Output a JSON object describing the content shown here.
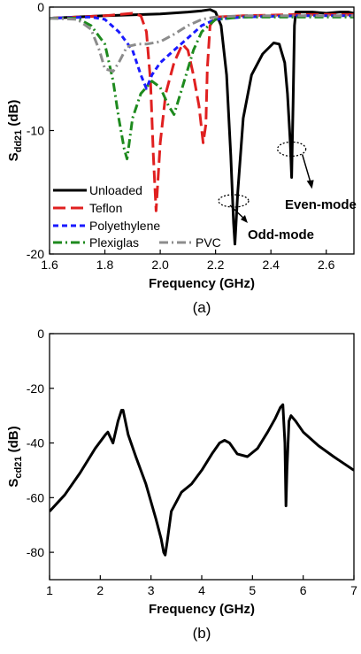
{
  "chart_data": [
    {
      "type": "line",
      "panel": "(a)",
      "xlabel": "Frequency (GHz)",
      "ylabel_main": "S",
      "ylabel_sub": "dd21",
      "ylabel_unit": " (dB)",
      "xlim": [
        1.6,
        2.7
      ],
      "ylim": [
        -20,
        0
      ],
      "xticks": [
        1.6,
        1.8,
        2.0,
        2.2,
        2.4,
        2.6
      ],
      "xtick_labels": [
        "1.6",
        "1.8",
        "2.0",
        "2.2",
        "2.4",
        "2.6"
      ],
      "yticks": [
        0,
        -10,
        -20
      ],
      "ytick_labels": [
        "0",
        "-10",
        "-20"
      ],
      "legend_position": "bottom-left",
      "series": [
        {
          "name": "Unloaded",
          "color": "#000000",
          "dash": "solid",
          "x": [
            1.6,
            1.8,
            2.0,
            2.1,
            2.15,
            2.18,
            2.2,
            2.22,
            2.24,
            2.255,
            2.265,
            2.27,
            2.28,
            2.3,
            2.33,
            2.37,
            2.41,
            2.43,
            2.45,
            2.46,
            2.47,
            2.475,
            2.48,
            2.485,
            2.49,
            2.5,
            2.55,
            2.6,
            2.65,
            2.68,
            2.7
          ],
          "y": [
            -0.9,
            -0.7,
            -0.55,
            -0.4,
            -0.3,
            -0.2,
            -0.4,
            -1.5,
            -5.5,
            -12,
            -17.5,
            -19.2,
            -15,
            -9,
            -5.5,
            -3.8,
            -2.9,
            -3.0,
            -4.5,
            -7,
            -11,
            -13.8,
            -8,
            -1.5,
            -0.4,
            -0.4,
            -0.4,
            -0.5,
            -0.4,
            -0.4,
            -0.5
          ]
        },
        {
          "name": "Teflon",
          "color": "#e02020",
          "dash": "long-dash",
          "x": [
            1.6,
            1.7,
            1.8,
            1.85,
            1.9,
            1.93,
            1.95,
            1.965,
            1.975,
            1.985,
            2.0,
            2.02,
            2.05,
            2.08,
            2.1,
            2.12,
            2.14,
            2.155,
            2.165,
            2.17,
            2.18,
            2.2,
            2.3,
            2.5,
            2.7
          ],
          "y": [
            -0.9,
            -0.8,
            -0.7,
            -0.6,
            -0.5,
            -0.7,
            -2,
            -6,
            -12,
            -16.5,
            -11,
            -7,
            -4.5,
            -3,
            -3.5,
            -5.5,
            -8,
            -11,
            -9.5,
            -5,
            -1.5,
            -0.8,
            -0.7,
            -0.6,
            -0.6
          ]
        },
        {
          "name": "Polyethylene",
          "color": "#1a1aff",
          "dash": "short-dash",
          "x": [
            1.6,
            1.75,
            1.8,
            1.85,
            1.9,
            1.93,
            1.95,
            1.97,
            2.0,
            2.05,
            2.1,
            2.15,
            2.2,
            2.3,
            2.5,
            2.7
          ],
          "y": [
            -0.9,
            -0.8,
            -1.0,
            -2.0,
            -3.5,
            -5.5,
            -6.6,
            -5.5,
            -4.5,
            -3.5,
            -2.5,
            -1.5,
            -1.0,
            -0.8,
            -0.7,
            -0.7
          ]
        },
        {
          "name": "Plexiglas",
          "color": "#1e8a1e",
          "dash": "dash-dot",
          "x": [
            1.6,
            1.7,
            1.75,
            1.8,
            1.83,
            1.85,
            1.87,
            1.88,
            1.9,
            1.93,
            1.97,
            2.0,
            2.03,
            2.05,
            2.08,
            2.12,
            2.15,
            2.2,
            2.3,
            2.5,
            2.7
          ],
          "y": [
            -0.9,
            -0.9,
            -1.5,
            -3,
            -6,
            -9,
            -11.5,
            -12.3,
            -9,
            -7,
            -6,
            -6.5,
            -8,
            -8.7,
            -6.5,
            -3.5,
            -2,
            -1,
            -0.8,
            -0.8,
            -0.8
          ]
        },
        {
          "name": "PVC",
          "color": "#8c8c8c",
          "dash": "dash-dot",
          "x": [
            1.6,
            1.7,
            1.75,
            1.78,
            1.8,
            1.83,
            1.85,
            1.88,
            1.92,
            1.95,
            2.0,
            2.05,
            2.1,
            2.15,
            2.2,
            2.3,
            2.5,
            2.7
          ],
          "y": [
            -0.9,
            -1.0,
            -1.8,
            -3.5,
            -5.0,
            -5.2,
            -4.5,
            -3.2,
            -3.0,
            -3.0,
            -2.8,
            -2.2,
            -1.5,
            -1.0,
            -0.8,
            -0.7,
            -0.7,
            -0.7
          ]
        }
      ],
      "annotations": [
        {
          "text": "Odd-mode",
          "ellipse_x": 2.265,
          "ellipse_y": -15.7,
          "text_x": 2.265,
          "text_y": -18.3
        },
        {
          "text": "Even-mode",
          "ellipse_x": 2.475,
          "ellipse_y": -11.5,
          "text_x": 2.47,
          "text_y": -16.0
        }
      ]
    },
    {
      "type": "line",
      "panel": "(b)",
      "xlabel": "Frequency (GHz)",
      "ylabel_main": "S",
      "ylabel_sub": "cd21",
      "ylabel_unit": " (dB)",
      "xlim": [
        1,
        7
      ],
      "ylim": [
        -90,
        0
      ],
      "xticks": [
        1,
        2,
        3,
        4,
        5,
        6,
        7
      ],
      "xtick_labels": [
        "1",
        "2",
        "3",
        "4",
        "5",
        "6",
        "7"
      ],
      "yticks": [
        0,
        -20,
        -40,
        -60,
        -80
      ],
      "ytick_labels": [
        "0",
        "-20",
        "-40",
        "-60",
        "-80"
      ],
      "series": [
        {
          "name": "",
          "color": "#000000",
          "x": [
            1.0,
            1.3,
            1.6,
            1.9,
            2.1,
            2.15,
            2.25,
            2.35,
            2.42,
            2.45,
            2.55,
            2.7,
            2.9,
            3.1,
            3.2,
            3.25,
            3.28,
            3.32,
            3.4,
            3.6,
            3.8,
            4.0,
            4.2,
            4.35,
            4.45,
            4.55,
            4.7,
            4.9,
            5.1,
            5.3,
            5.45,
            5.55,
            5.6,
            5.64,
            5.66,
            5.68,
            5.72,
            5.76,
            5.85,
            6.0,
            6.3,
            6.6,
            7.0
          ],
          "y": [
            -65,
            -59,
            -51,
            -42,
            -37,
            -36,
            -40,
            -32,
            -28,
            -28,
            -37,
            -45,
            -55,
            -68,
            -75,
            -80,
            -81,
            -76,
            -65,
            -58,
            -55,
            -50,
            -44,
            -40,
            -39,
            -40,
            -44,
            -45,
            -42,
            -36,
            -31,
            -27,
            -26,
            -40,
            -63,
            -50,
            -32,
            -30,
            -32,
            -36,
            -41,
            -45,
            -50
          ]
        }
      ]
    }
  ]
}
